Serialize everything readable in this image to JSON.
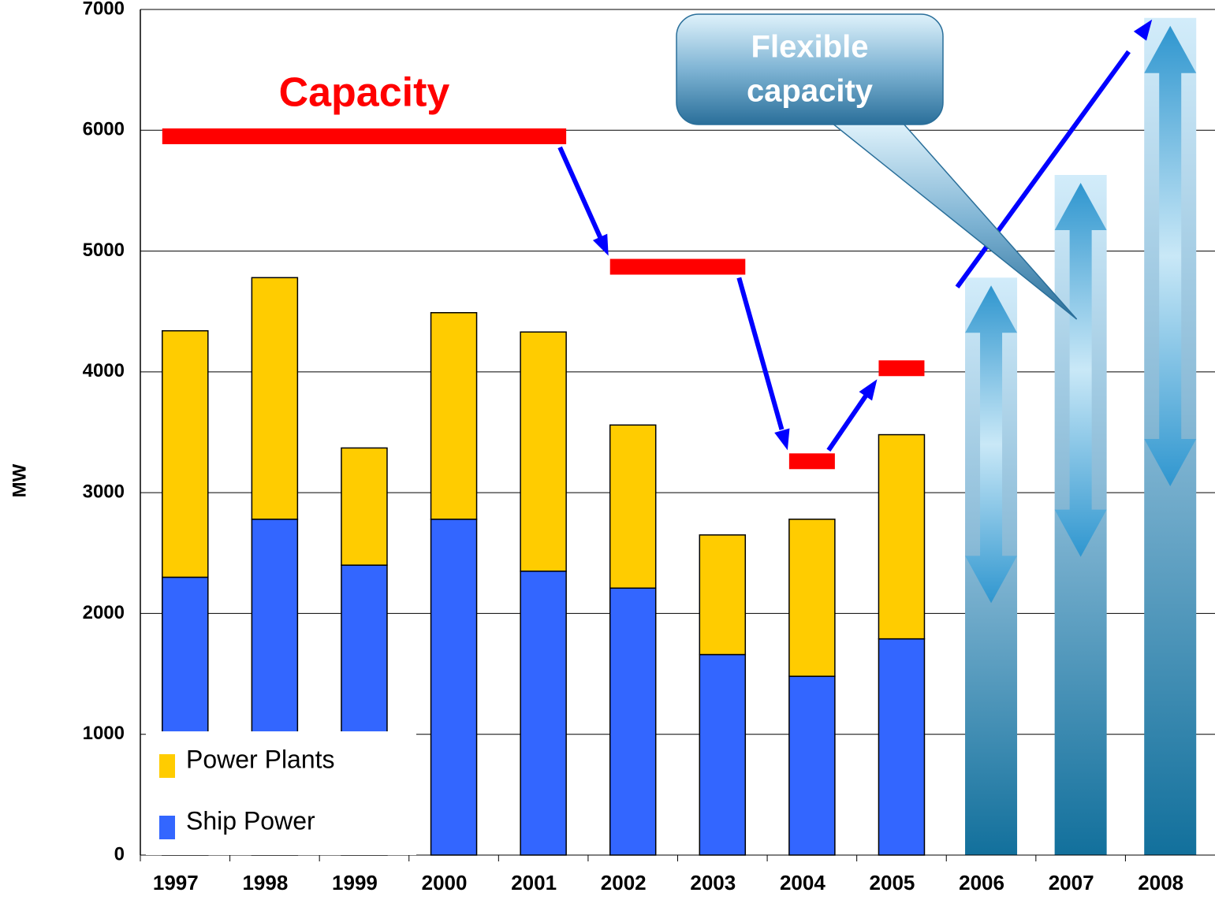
{
  "chart_data": {
    "type": "stacked_bar",
    "y_label": "MW",
    "categories": [
      "1997",
      "1998",
      "1999",
      "2000",
      "2001",
      "2002",
      "2003",
      "2004",
      "2005",
      "2006",
      "2007",
      "2008"
    ],
    "series": [
      {
        "name": "Ship Power",
        "color": "#3366ff",
        "values": [
          2300,
          2780,
          2400,
          2780,
          2350,
          2210,
          1660,
          1480,
          1790,
          null,
          null,
          null
        ]
      },
      {
        "name": "Power Plants",
        "color": "#ffcc00",
        "values": [
          2040,
          2000,
          970,
          1710,
          1980,
          1350,
          990,
          1300,
          1690,
          null,
          null,
          null
        ]
      }
    ],
    "capacity": {
      "label": "Capacity",
      "color": "#ff0000",
      "values": [
        5950,
        5950,
        5950,
        5950,
        5950,
        4870,
        4870,
        3260,
        4030,
        null,
        null,
        null
      ]
    },
    "flexible_capacity": {
      "label": [
        "Flexible",
        "capacity"
      ],
      "values": [
        null,
        null,
        null,
        null,
        null,
        null,
        null,
        null,
        null,
        4780,
        5630,
        6930
      ]
    },
    "ylim": [
      0,
      7000
    ],
    "yticks": [
      0,
      1000,
      2000,
      3000,
      4000,
      5000,
      6000,
      7000
    ],
    "grid": true,
    "legend": "lower left"
  }
}
